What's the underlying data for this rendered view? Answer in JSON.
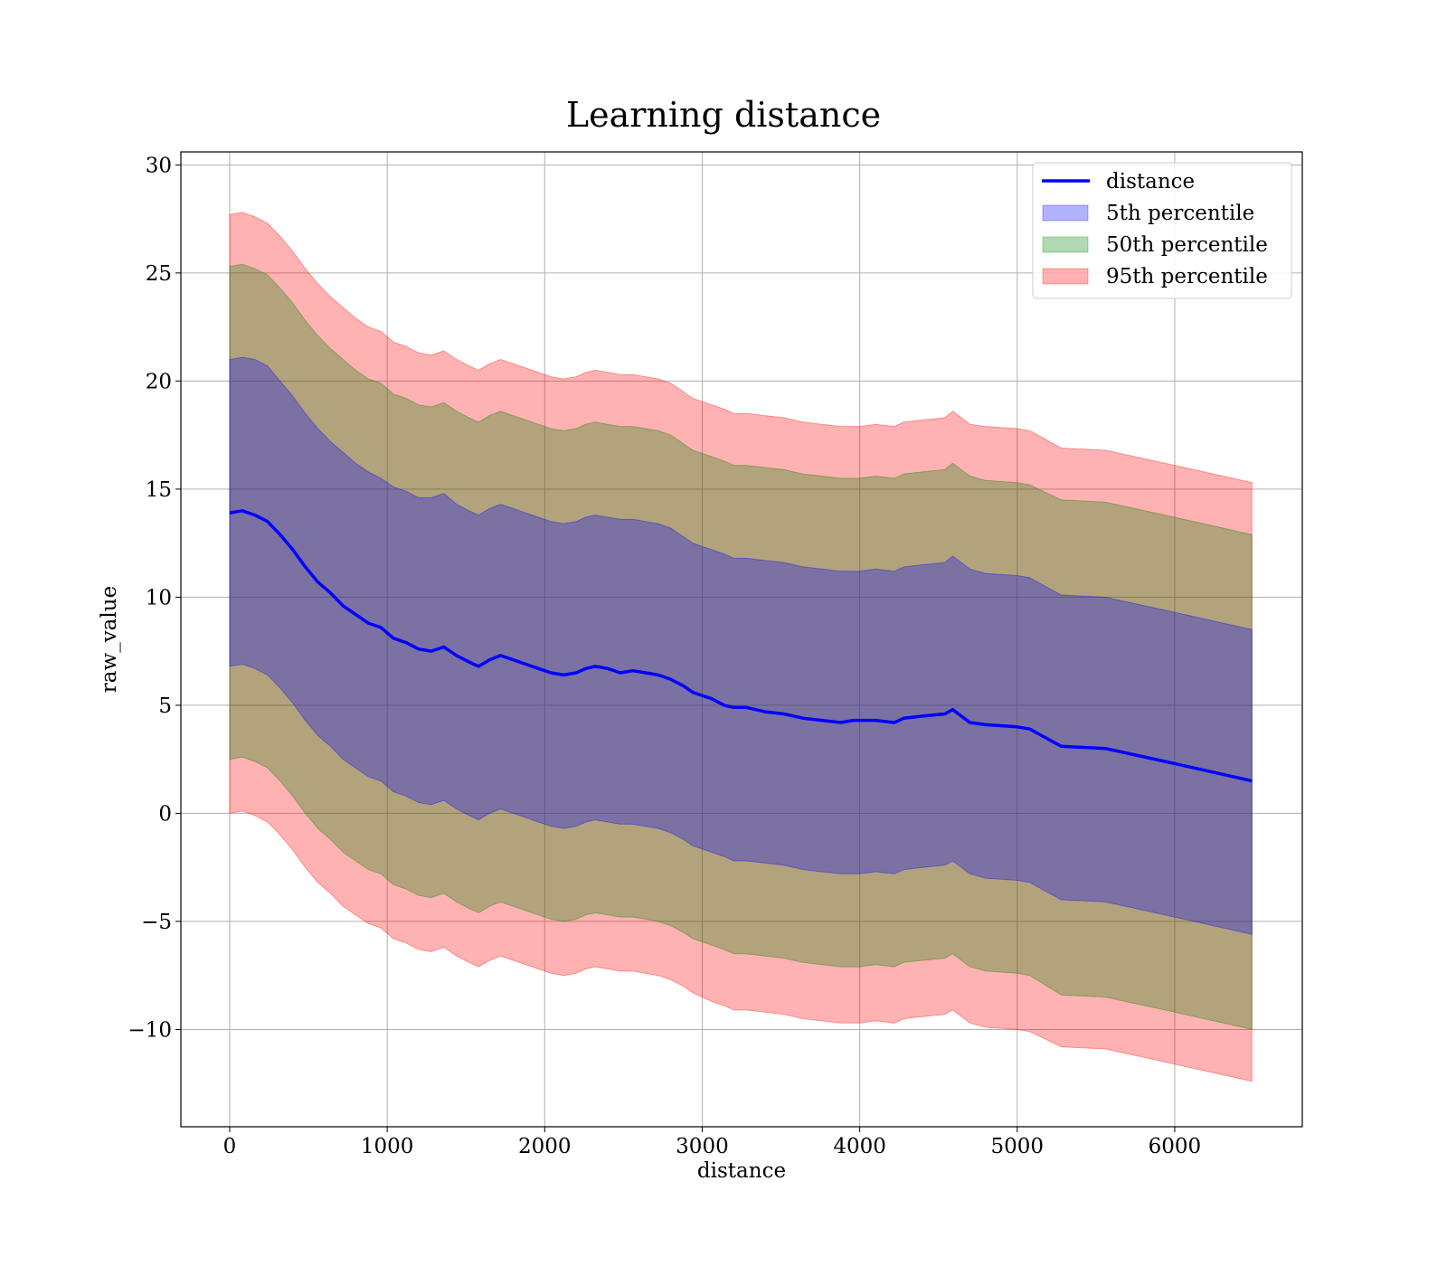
{
  "chart_data": {
    "type": "line",
    "title": "Learning distance",
    "xlabel": "distance",
    "ylabel": "raw_value",
    "xlim": [
      -310,
      6810
    ],
    "ylim": [
      -14.5,
      30.6
    ],
    "x_ticks": [
      0,
      1000,
      2000,
      3000,
      4000,
      5000,
      6000
    ],
    "y_ticks": [
      30,
      25,
      20,
      15,
      10,
      5,
      0,
      -5,
      -10
    ],
    "x_tick_labels": [
      "0",
      "1000",
      "2000",
      "3000",
      "4000",
      "5000",
      "6000"
    ],
    "y_tick_labels": [
      "30",
      "25",
      "20",
      "15",
      "10",
      "5",
      "0",
      "−5",
      "−10"
    ],
    "grid": true,
    "legend_position": "top-right",
    "colors": {
      "line": "#0000ff",
      "band_5": "#0000ff",
      "band_50": "#008000",
      "band_95": "#ff0000"
    },
    "x": [
      0,
      80,
      160,
      240,
      320,
      400,
      480,
      560,
      640,
      720,
      800,
      880,
      960,
      1040,
      1120,
      1200,
      1280,
      1360,
      1440,
      1520,
      1580,
      1650,
      1720,
      1800,
      1880,
      1960,
      2040,
      2120,
      2200,
      2260,
      2320,
      2400,
      2480,
      2560,
      2640,
      2720,
      2800,
      2880,
      2940,
      3060,
      3140,
      3200,
      3280,
      3400,
      3520,
      3640,
      3760,
      3880,
      3960,
      4000,
      4100,
      4220,
      4280,
      4400,
      4540,
      4590,
      4700,
      4800,
      5000,
      5080,
      5280,
      5560,
      6000,
      6490
    ],
    "series": [
      {
        "name": "distance",
        "values": [
          13.9,
          14.0,
          13.8,
          13.5,
          12.9,
          12.2,
          11.4,
          10.7,
          10.2,
          9.6,
          9.2,
          8.8,
          8.6,
          8.1,
          7.9,
          7.6,
          7.5,
          7.7,
          7.3,
          7.0,
          6.8,
          7.1,
          7.3,
          7.1,
          6.9,
          6.7,
          6.5,
          6.4,
          6.5,
          6.7,
          6.8,
          6.7,
          6.5,
          6.6,
          6.5,
          6.4,
          6.2,
          5.9,
          5.6,
          5.3,
          5.0,
          4.9,
          4.9,
          4.7,
          4.6,
          4.4,
          4.3,
          4.2,
          4.3,
          4.3,
          4.3,
          4.2,
          4.4,
          4.5,
          4.6,
          4.8,
          4.2,
          4.1,
          4.0,
          3.9,
          3.1,
          3.0,
          2.3,
          1.5
        ]
      },
      {
        "name": "5th percentile",
        "values": [
          21.0,
          21.1,
          21.0,
          20.7,
          20.0,
          19.3,
          18.5,
          17.8,
          17.2,
          16.7,
          16.2,
          15.8,
          15.5,
          15.1,
          14.9,
          14.6,
          14.6,
          14.8,
          14.3,
          14.0,
          13.8,
          14.1,
          14.3,
          14.1,
          13.9,
          13.7,
          13.5,
          13.4,
          13.5,
          13.7,
          13.8,
          13.7,
          13.6,
          13.6,
          13.5,
          13.4,
          13.2,
          12.8,
          12.5,
          12.2,
          12.0,
          11.8,
          11.8,
          11.7,
          11.6,
          11.4,
          11.3,
          11.2,
          11.2,
          11.2,
          11.3,
          11.2,
          11.4,
          11.5,
          11.6,
          11.9,
          11.3,
          11.1,
          11.0,
          10.9,
          10.1,
          10.0,
          9.3,
          8.5
        ],
        "lower": [
          6.8,
          6.9,
          6.7,
          6.4,
          5.8,
          5.1,
          4.3,
          3.6,
          3.1,
          2.5,
          2.1,
          1.7,
          1.5,
          1.0,
          0.8,
          0.5,
          0.4,
          0.6,
          0.2,
          -0.1,
          -0.3,
          0.0,
          0.2,
          0.0,
          -0.2,
          -0.4,
          -0.6,
          -0.7,
          -0.6,
          -0.4,
          -0.3,
          -0.4,
          -0.5,
          -0.5,
          -0.6,
          -0.7,
          -0.9,
          -1.2,
          -1.5,
          -1.8,
          -2.0,
          -2.2,
          -2.2,
          -2.3,
          -2.4,
          -2.6,
          -2.7,
          -2.8,
          -2.8,
          -2.8,
          -2.7,
          -2.8,
          -2.6,
          -2.5,
          -2.4,
          -2.2,
          -2.8,
          -3.0,
          -3.1,
          -3.2,
          -4.0,
          -4.1,
          -4.8,
          -5.6
        ]
      },
      {
        "name": "50th percentile",
        "values": [
          25.3,
          25.4,
          25.2,
          24.9,
          24.3,
          23.6,
          22.8,
          22.1,
          21.5,
          21.0,
          20.5,
          20.1,
          19.9,
          19.4,
          19.2,
          18.9,
          18.8,
          19.0,
          18.6,
          18.3,
          18.1,
          18.4,
          18.6,
          18.4,
          18.2,
          18.0,
          17.8,
          17.7,
          17.8,
          18.0,
          18.1,
          18.0,
          17.9,
          17.9,
          17.8,
          17.7,
          17.5,
          17.1,
          16.8,
          16.5,
          16.3,
          16.1,
          16.1,
          16.0,
          15.9,
          15.7,
          15.6,
          15.5,
          15.5,
          15.5,
          15.6,
          15.5,
          15.7,
          15.8,
          15.9,
          16.2,
          15.6,
          15.4,
          15.3,
          15.2,
          14.5,
          14.4,
          13.7,
          12.9
        ],
        "lower": [
          2.5,
          2.6,
          2.4,
          2.1,
          1.5,
          0.8,
          0.0,
          -0.7,
          -1.2,
          -1.8,
          -2.2,
          -2.6,
          -2.8,
          -3.3,
          -3.5,
          -3.8,
          -3.9,
          -3.7,
          -4.1,
          -4.4,
          -4.6,
          -4.3,
          -4.1,
          -4.3,
          -4.5,
          -4.7,
          -4.9,
          -5.0,
          -4.9,
          -4.7,
          -4.6,
          -4.7,
          -4.8,
          -4.8,
          -4.9,
          -5.0,
          -5.2,
          -5.5,
          -5.8,
          -6.1,
          -6.3,
          -6.5,
          -6.5,
          -6.6,
          -6.7,
          -6.9,
          -7.0,
          -7.1,
          -7.1,
          -7.1,
          -7.0,
          -7.1,
          -6.9,
          -6.8,
          -6.7,
          -6.5,
          -7.1,
          -7.3,
          -7.4,
          -7.5,
          -8.4,
          -8.5,
          -9.2,
          -10.0
        ]
      },
      {
        "name": "95th percentile",
        "values": [
          27.7,
          27.8,
          27.6,
          27.3,
          26.7,
          26.0,
          25.2,
          24.5,
          23.9,
          23.4,
          22.9,
          22.5,
          22.3,
          21.8,
          21.6,
          21.3,
          21.2,
          21.4,
          21.0,
          20.7,
          20.5,
          20.8,
          21.0,
          20.8,
          20.6,
          20.4,
          20.2,
          20.1,
          20.2,
          20.4,
          20.5,
          20.4,
          20.3,
          20.3,
          20.2,
          20.1,
          19.9,
          19.5,
          19.2,
          18.9,
          18.7,
          18.5,
          18.5,
          18.4,
          18.3,
          18.1,
          18.0,
          17.9,
          17.9,
          17.9,
          18.0,
          17.9,
          18.1,
          18.2,
          18.3,
          18.6,
          18.0,
          17.9,
          17.8,
          17.7,
          16.9,
          16.8,
          16.1,
          15.3
        ],
        "lower": [
          0.0,
          0.1,
          -0.1,
          -0.4,
          -1.0,
          -1.7,
          -2.5,
          -3.2,
          -3.7,
          -4.3,
          -4.7,
          -5.1,
          -5.3,
          -5.8,
          -6.0,
          -6.3,
          -6.4,
          -6.2,
          -6.6,
          -6.9,
          -7.1,
          -6.8,
          -6.6,
          -6.8,
          -7.0,
          -7.2,
          -7.4,
          -7.5,
          -7.4,
          -7.2,
          -7.1,
          -7.2,
          -7.3,
          -7.3,
          -7.4,
          -7.5,
          -7.7,
          -8.0,
          -8.3,
          -8.7,
          -8.9,
          -9.1,
          -9.1,
          -9.2,
          -9.3,
          -9.5,
          -9.6,
          -9.7,
          -9.7,
          -9.7,
          -9.6,
          -9.7,
          -9.5,
          -9.4,
          -9.3,
          -9.1,
          -9.7,
          -9.9,
          -10.0,
          -10.1,
          -10.8,
          -10.9,
          -11.6,
          -12.4
        ]
      }
    ]
  }
}
